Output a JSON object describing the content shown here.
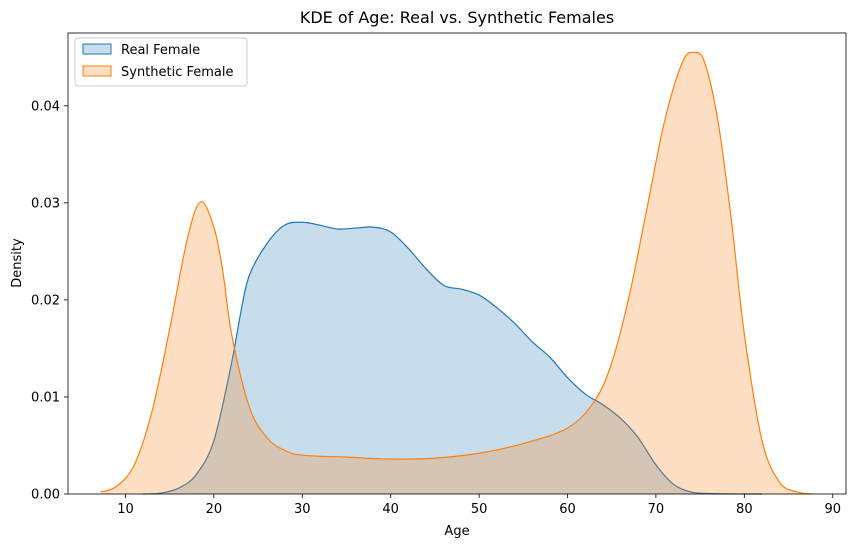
{
  "chart_data": {
    "type": "area",
    "title": "KDE of Age: Real vs. Synthetic Females",
    "xlabel": "Age",
    "ylabel": "Density",
    "xlim": [
      3.5,
      91.5
    ],
    "ylim": [
      0,
      0.0475
    ],
    "xticks": [
      10,
      20,
      30,
      40,
      50,
      60,
      70,
      80,
      90
    ],
    "yticks": [
      0.0,
      0.01,
      0.02,
      0.03,
      0.04
    ],
    "ytick_labels": [
      "0.00",
      "0.01",
      "0.02",
      "0.03",
      "0.04"
    ],
    "grid": false,
    "legend_position": "top-left",
    "series": [
      {
        "name": "Real Female",
        "color": "#1f77b4",
        "fill": "#1f77b4",
        "fill_opacity": 0.25,
        "points": [
          [
            12,
            0.0
          ],
          [
            14,
            0.0001
          ],
          [
            16,
            0.0006
          ],
          [
            18,
            0.002
          ],
          [
            20,
            0.0055
          ],
          [
            22,
            0.0135
          ],
          [
            23,
            0.0185
          ],
          [
            24,
            0.0225
          ],
          [
            26,
            0.0258
          ],
          [
            28,
            0.0277
          ],
          [
            30,
            0.028
          ],
          [
            32,
            0.0277
          ],
          [
            34,
            0.0273
          ],
          [
            36,
            0.0274
          ],
          [
            38,
            0.0275
          ],
          [
            40,
            0.027
          ],
          [
            42,
            0.0253
          ],
          [
            44,
            0.0232
          ],
          [
            46,
            0.0215
          ],
          [
            48,
            0.0211
          ],
          [
            50,
            0.0205
          ],
          [
            52,
            0.0192
          ],
          [
            54,
            0.0176
          ],
          [
            56,
            0.0157
          ],
          [
            58,
            0.0141
          ],
          [
            60,
            0.012
          ],
          [
            62,
            0.0103
          ],
          [
            64,
            0.0092
          ],
          [
            66,
            0.0078
          ],
          [
            68,
            0.0058
          ],
          [
            70,
            0.003
          ],
          [
            72,
            0.001
          ],
          [
            74,
            0.0002
          ],
          [
            76,
            5e-05
          ],
          [
            80,
            0.0
          ],
          [
            82,
            0.0
          ]
        ]
      },
      {
        "name": "Synthetic Female",
        "color": "#ff7f0e",
        "fill": "#ff7f0e",
        "fill_opacity": 0.25,
        "points": [
          [
            7.2,
            0.0002
          ],
          [
            9,
            0.0008
          ],
          [
            11,
            0.003
          ],
          [
            13,
            0.0085
          ],
          [
            15,
            0.017
          ],
          [
            17,
            0.0263
          ],
          [
            18.5,
            0.0301
          ],
          [
            20,
            0.0275
          ],
          [
            21,
            0.023
          ],
          [
            22,
            0.0165
          ],
          [
            24,
            0.009
          ],
          [
            26,
            0.0058
          ],
          [
            28,
            0.0045
          ],
          [
            30,
            0.004
          ],
          [
            35,
            0.0038
          ],
          [
            40,
            0.0036
          ],
          [
            45,
            0.0037
          ],
          [
            50,
            0.0042
          ],
          [
            55,
            0.0052
          ],
          [
            60,
            0.0068
          ],
          [
            63,
            0.0095
          ],
          [
            65,
            0.0135
          ],
          [
            67,
            0.0205
          ],
          [
            69,
            0.0295
          ],
          [
            71,
            0.0385
          ],
          [
            73,
            0.0445
          ],
          [
            74.3,
            0.0455
          ],
          [
            75.5,
            0.0445
          ],
          [
            77,
            0.0385
          ],
          [
            78.5,
            0.0285
          ],
          [
            80,
            0.0165
          ],
          [
            82,
            0.0055
          ],
          [
            84,
            0.0012
          ],
          [
            86,
            0.0002
          ],
          [
            87.7,
            0.0
          ]
        ]
      }
    ]
  }
}
